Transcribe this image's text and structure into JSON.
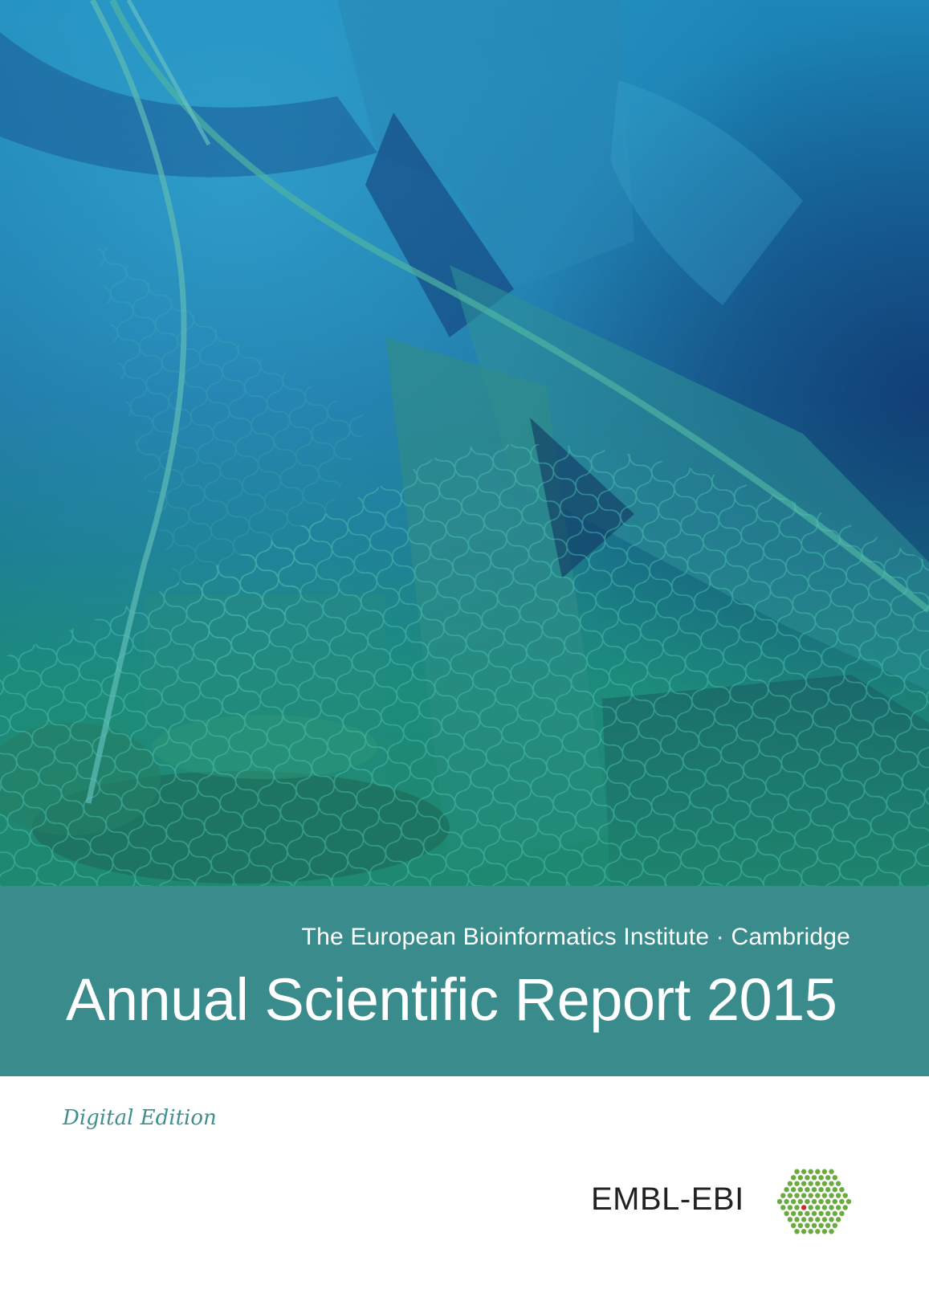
{
  "cover": {
    "institute_line": "The European Bioinformatics Institute · Cambridge",
    "title": "Annual Scientific Report 2015",
    "edition": "Digital Edition"
  },
  "logo": {
    "text": "EMBL-EBI",
    "mark_icon": "embl-ebi-hexagon-dots-icon",
    "mark_color": "#6aab3f",
    "accent_color": "#d9232e"
  },
  "colors": {
    "band": "#3a8c8c",
    "edition_text": "#3f8f8f"
  }
}
